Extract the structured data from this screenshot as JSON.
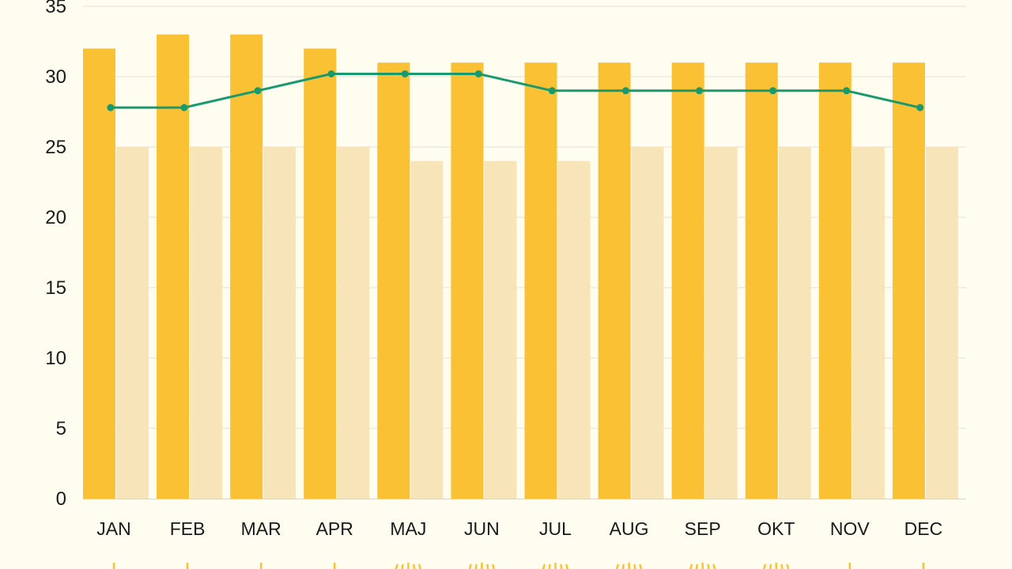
{
  "chart_data": {
    "type": "bar",
    "categories": [
      "JAN",
      "FEB",
      "MAR",
      "APR",
      "MAJ",
      "JUN",
      "JUL",
      "AUG",
      "SEP",
      "OKT",
      "NOV",
      "DEC"
    ],
    "series": [
      {
        "type": "bar",
        "color": "#fbc134",
        "values": [
          32,
          33,
          33,
          32,
          31,
          31,
          31,
          31,
          31,
          31,
          31,
          31
        ]
      },
      {
        "type": "bar",
        "color": "#f7e5b9",
        "values": [
          25,
          25,
          25,
          25,
          24,
          24,
          24,
          25,
          25,
          25,
          25,
          25
        ]
      },
      {
        "type": "line",
        "color": "#169a6e",
        "values": [
          27.8,
          27.8,
          29,
          30.2,
          30.2,
          30.2,
          29,
          29,
          29,
          29,
          29,
          27.8
        ]
      }
    ],
    "ylim": [
      0,
      35
    ],
    "yticks": [
      0,
      5,
      10,
      15,
      20,
      25,
      30,
      35
    ],
    "grid": true,
    "title": "",
    "xlabel": "",
    "ylabel": ""
  },
  "colors": {
    "background": "#fffcf0",
    "gridline": "#e4e1d6",
    "axis": "#d8d5cb",
    "footer_icon": "#fbc134"
  }
}
